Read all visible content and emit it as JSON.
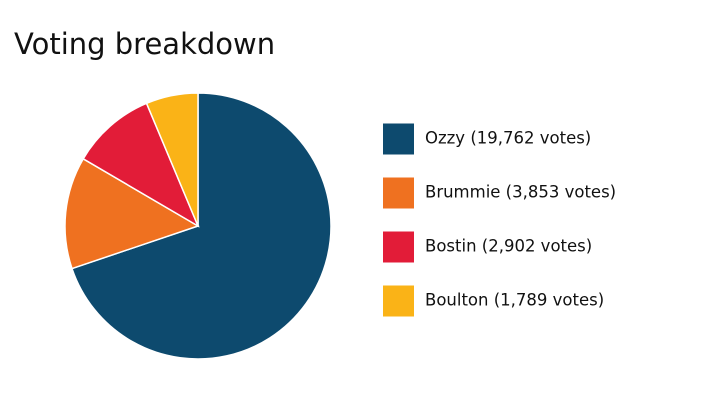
{
  "chart_data": {
    "type": "pie",
    "title": "Voting breakdown",
    "categories": [
      "Ozzy (19,762 votes)",
      "Brummie (3,853 votes)",
      "Bostin (2,902 votes)",
      "Boulton (1,789 votes)"
    ],
    "values": [
      19762,
      3853,
      2902,
      1789
    ],
    "colors": [
      "#0d4a6e",
      "#ef7120",
      "#e21c38",
      "#fab317"
    ],
    "legend": "right"
  }
}
